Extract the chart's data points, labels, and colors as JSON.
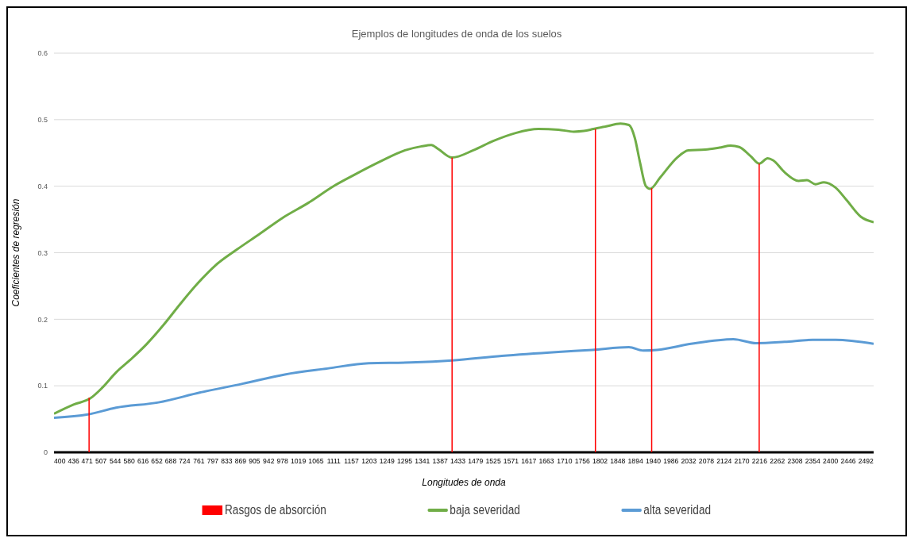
{
  "chart_data": {
    "type": "line",
    "title": "Ejemplos de longitudes de onda de los suelos",
    "xlabel": "Longitudes de onda",
    "ylabel": "Coeficientes de regresión",
    "xlim": [
      385,
      2512
    ],
    "xticks": [
      400,
      436,
      471,
      507,
      544,
      580,
      616,
      652,
      688,
      724,
      761,
      797,
      833,
      869,
      905,
      942,
      978,
      1019,
      1065,
      1111,
      1157,
      1203,
      1249,
      1295,
      1341,
      1387,
      1433,
      1479,
      1525,
      1571,
      1617,
      1663,
      1710,
      1756,
      1802,
      1848,
      1894,
      1940,
      1986,
      2032,
      2078,
      2124,
      2170,
      2216,
      2262,
      2308,
      2354,
      2400,
      2446,
      2492
    ],
    "ylim": [
      0,
      0.6
    ],
    "yticks": [
      0,
      0.1,
      0.2,
      0.3,
      0.4,
      0.5,
      0.6
    ],
    "grid": "y",
    "legend": "bottom",
    "marker": "none",
    "line_style": "solid",
    "series": [
      {
        "name": "Rasgos de absorción",
        "type": "bar",
        "color": "#ff0000",
        "x": [
          476,
          1418,
          1790,
          1936,
          2215
        ],
        "values": [
          0.082,
          0.443,
          0.486,
          0.397,
          0.434
        ]
      },
      {
        "name": "baja severidad",
        "color": "#70ad47",
        "x": [
          385,
          437,
          479,
          510,
          546,
          583,
          626,
          670,
          714,
          758,
          802,
          860,
          918,
          977,
          1045,
          1110,
          1167,
          1231,
          1296,
          1339,
          1364,
          1382,
          1418,
          1473,
          1525,
          1583,
          1642,
          1694,
          1734,
          1760,
          1785,
          1818,
          1855,
          1877,
          1892,
          1906,
          1921,
          1932,
          1958,
          2002,
          2031,
          2075,
          2112,
          2141,
          2163,
          2193,
          2215,
          2237,
          2251,
          2281,
          2317,
          2339,
          2361,
          2383,
          2413,
          2442,
          2479,
          2512
        ],
        "values": [
          0.058,
          0.072,
          0.081,
          0.097,
          0.12,
          0.139,
          0.163,
          0.192,
          0.224,
          0.254,
          0.28,
          0.305,
          0.328,
          0.352,
          0.375,
          0.4,
          0.418,
          0.437,
          0.454,
          0.46,
          0.462,
          0.456,
          0.443,
          0.454,
          0.468,
          0.48,
          0.486,
          0.485,
          0.482,
          0.483,
          0.486,
          0.49,
          0.494,
          0.492,
          0.473,
          0.435,
          0.4,
          0.396,
          0.413,
          0.443,
          0.454,
          0.455,
          0.458,
          0.461,
          0.459,
          0.445,
          0.434,
          0.442,
          0.439,
          0.421,
          0.408,
          0.409,
          0.403,
          0.406,
          0.398,
          0.379,
          0.354,
          0.346
        ]
      },
      {
        "name": "alta severidad",
        "color": "#5b9bd5",
        "x": [
          385,
          473,
          546,
          656,
          765,
          874,
          984,
          1095,
          1202,
          1310,
          1418,
          1547,
          1694,
          1782,
          1877,
          1914,
          1950,
          2038,
          2148,
          2207,
          2281,
          2354,
          2413,
          2512
        ],
        "values": [
          0.052,
          0.057,
          0.067,
          0.075,
          0.09,
          0.103,
          0.117,
          0.126,
          0.134,
          0.135,
          0.138,
          0.145,
          0.151,
          0.154,
          0.158,
          0.153,
          0.154,
          0.163,
          0.17,
          0.164,
          0.166,
          0.169,
          0.169,
          0.163
        ]
      }
    ]
  }
}
